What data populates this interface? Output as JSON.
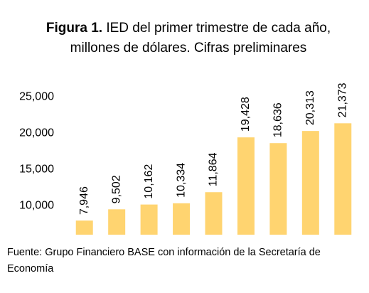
{
  "chart_data": {
    "type": "bar",
    "title_prefix": "Figura 1.",
    "title": "IED del primer trimestre de cada año, millones de dólares. Cifras preliminares",
    "source": "Fuente: Grupo Financiero BASE con información de la Secretaría de Economía",
    "categories": [
      null,
      null,
      null,
      null,
      null,
      null,
      null,
      null,
      null
    ],
    "values": [
      7946,
      9502,
      10162,
      10334,
      11864,
      19428,
      18636,
      20313,
      21373
    ],
    "value_labels": [
      "7,946",
      "9,502",
      "10,162",
      "10,334",
      "11,864",
      "19,428",
      "18,636",
      "20,313",
      "21,373"
    ],
    "color": "#ffd470",
    "ylim": [
      6000,
      27000
    ],
    "yticks": [
      {
        "value": 10000,
        "label": "10,000"
      },
      {
        "value": 15000,
        "label": "15,000"
      },
      {
        "value": 20000,
        "label": "20,000"
      },
      {
        "value": 25000,
        "label": "25,000"
      }
    ],
    "grid": false
  }
}
